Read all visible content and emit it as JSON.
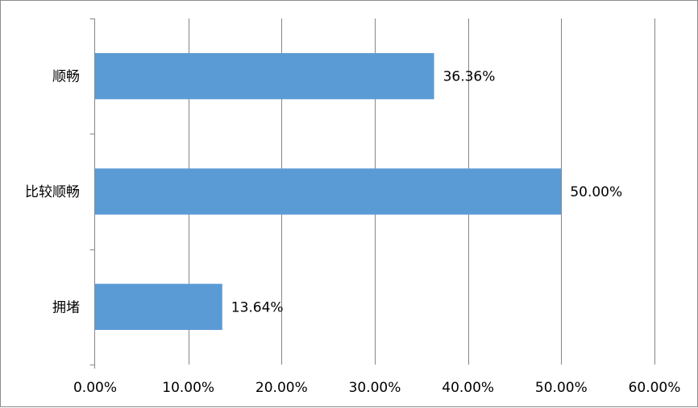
{
  "chart_data": {
    "type": "bar",
    "orientation": "horizontal",
    "categories": [
      "顺畅",
      "比较顺畅",
      "拥堵"
    ],
    "values": [
      36.36,
      50.0,
      13.64
    ],
    "data_labels": [
      "36.36%",
      "50.00%",
      "13.64%"
    ],
    "title": "",
    "xlabel": "",
    "ylabel": "",
    "xlim": [
      0,
      60
    ],
    "xticks": [
      0,
      10,
      20,
      30,
      40,
      50,
      60
    ],
    "xtick_labels": [
      "0.00%",
      "10.00%",
      "20.00%",
      "30.00%",
      "40.00%",
      "50.00%",
      "60.00%"
    ],
    "grid": "vertical",
    "legend": "none",
    "bar_color": "#5b9bd5",
    "gridline_color": "#868686"
  }
}
